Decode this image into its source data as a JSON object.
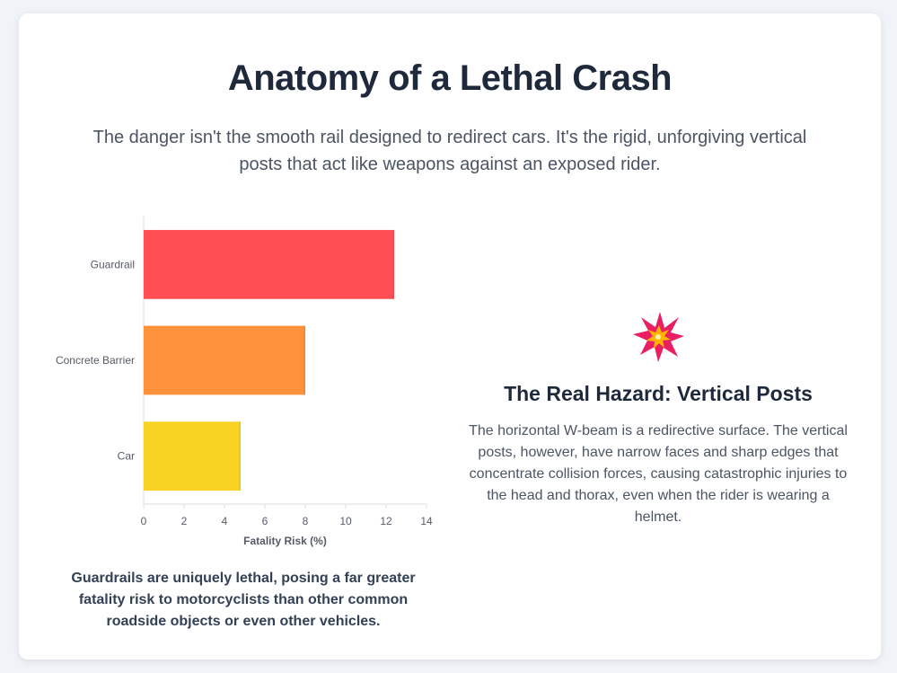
{
  "header": {
    "title": "Anatomy of a Lethal Crash",
    "subtitle": "The danger isn't the smooth rail designed to redirect cars. It's the rigid, unforgiving vertical posts that act like weapons against an exposed rider."
  },
  "chart_data": {
    "type": "bar",
    "orientation": "horizontal",
    "categories": [
      "Guardrail",
      "Concrete Barrier",
      "Car"
    ],
    "values": [
      12.4,
      8.0,
      4.8
    ],
    "colors": [
      "#ff4f55",
      "#ff923a",
      "#f8d323"
    ],
    "xlabel": "Fatality Risk (%)",
    "xlim": [
      0,
      14
    ],
    "xticks": [
      0,
      2,
      4,
      6,
      8,
      10,
      12,
      14
    ],
    "grid": false,
    "legend": "none"
  },
  "chart_caption": "Guardrails are uniquely lethal, posing a far greater fatality risk to motorcyclists than other common roadside objects or even other vehicles.",
  "hazard": {
    "icon": "collision-icon",
    "title": "The Real Hazard: Vertical Posts",
    "text": "The horizontal W-beam is a redirective surface. The vertical posts, however, have narrow faces and sharp edges that concentrate collision forces, causing catastrophic injuries to the head and thorax, even when the rider is wearing a helmet."
  }
}
